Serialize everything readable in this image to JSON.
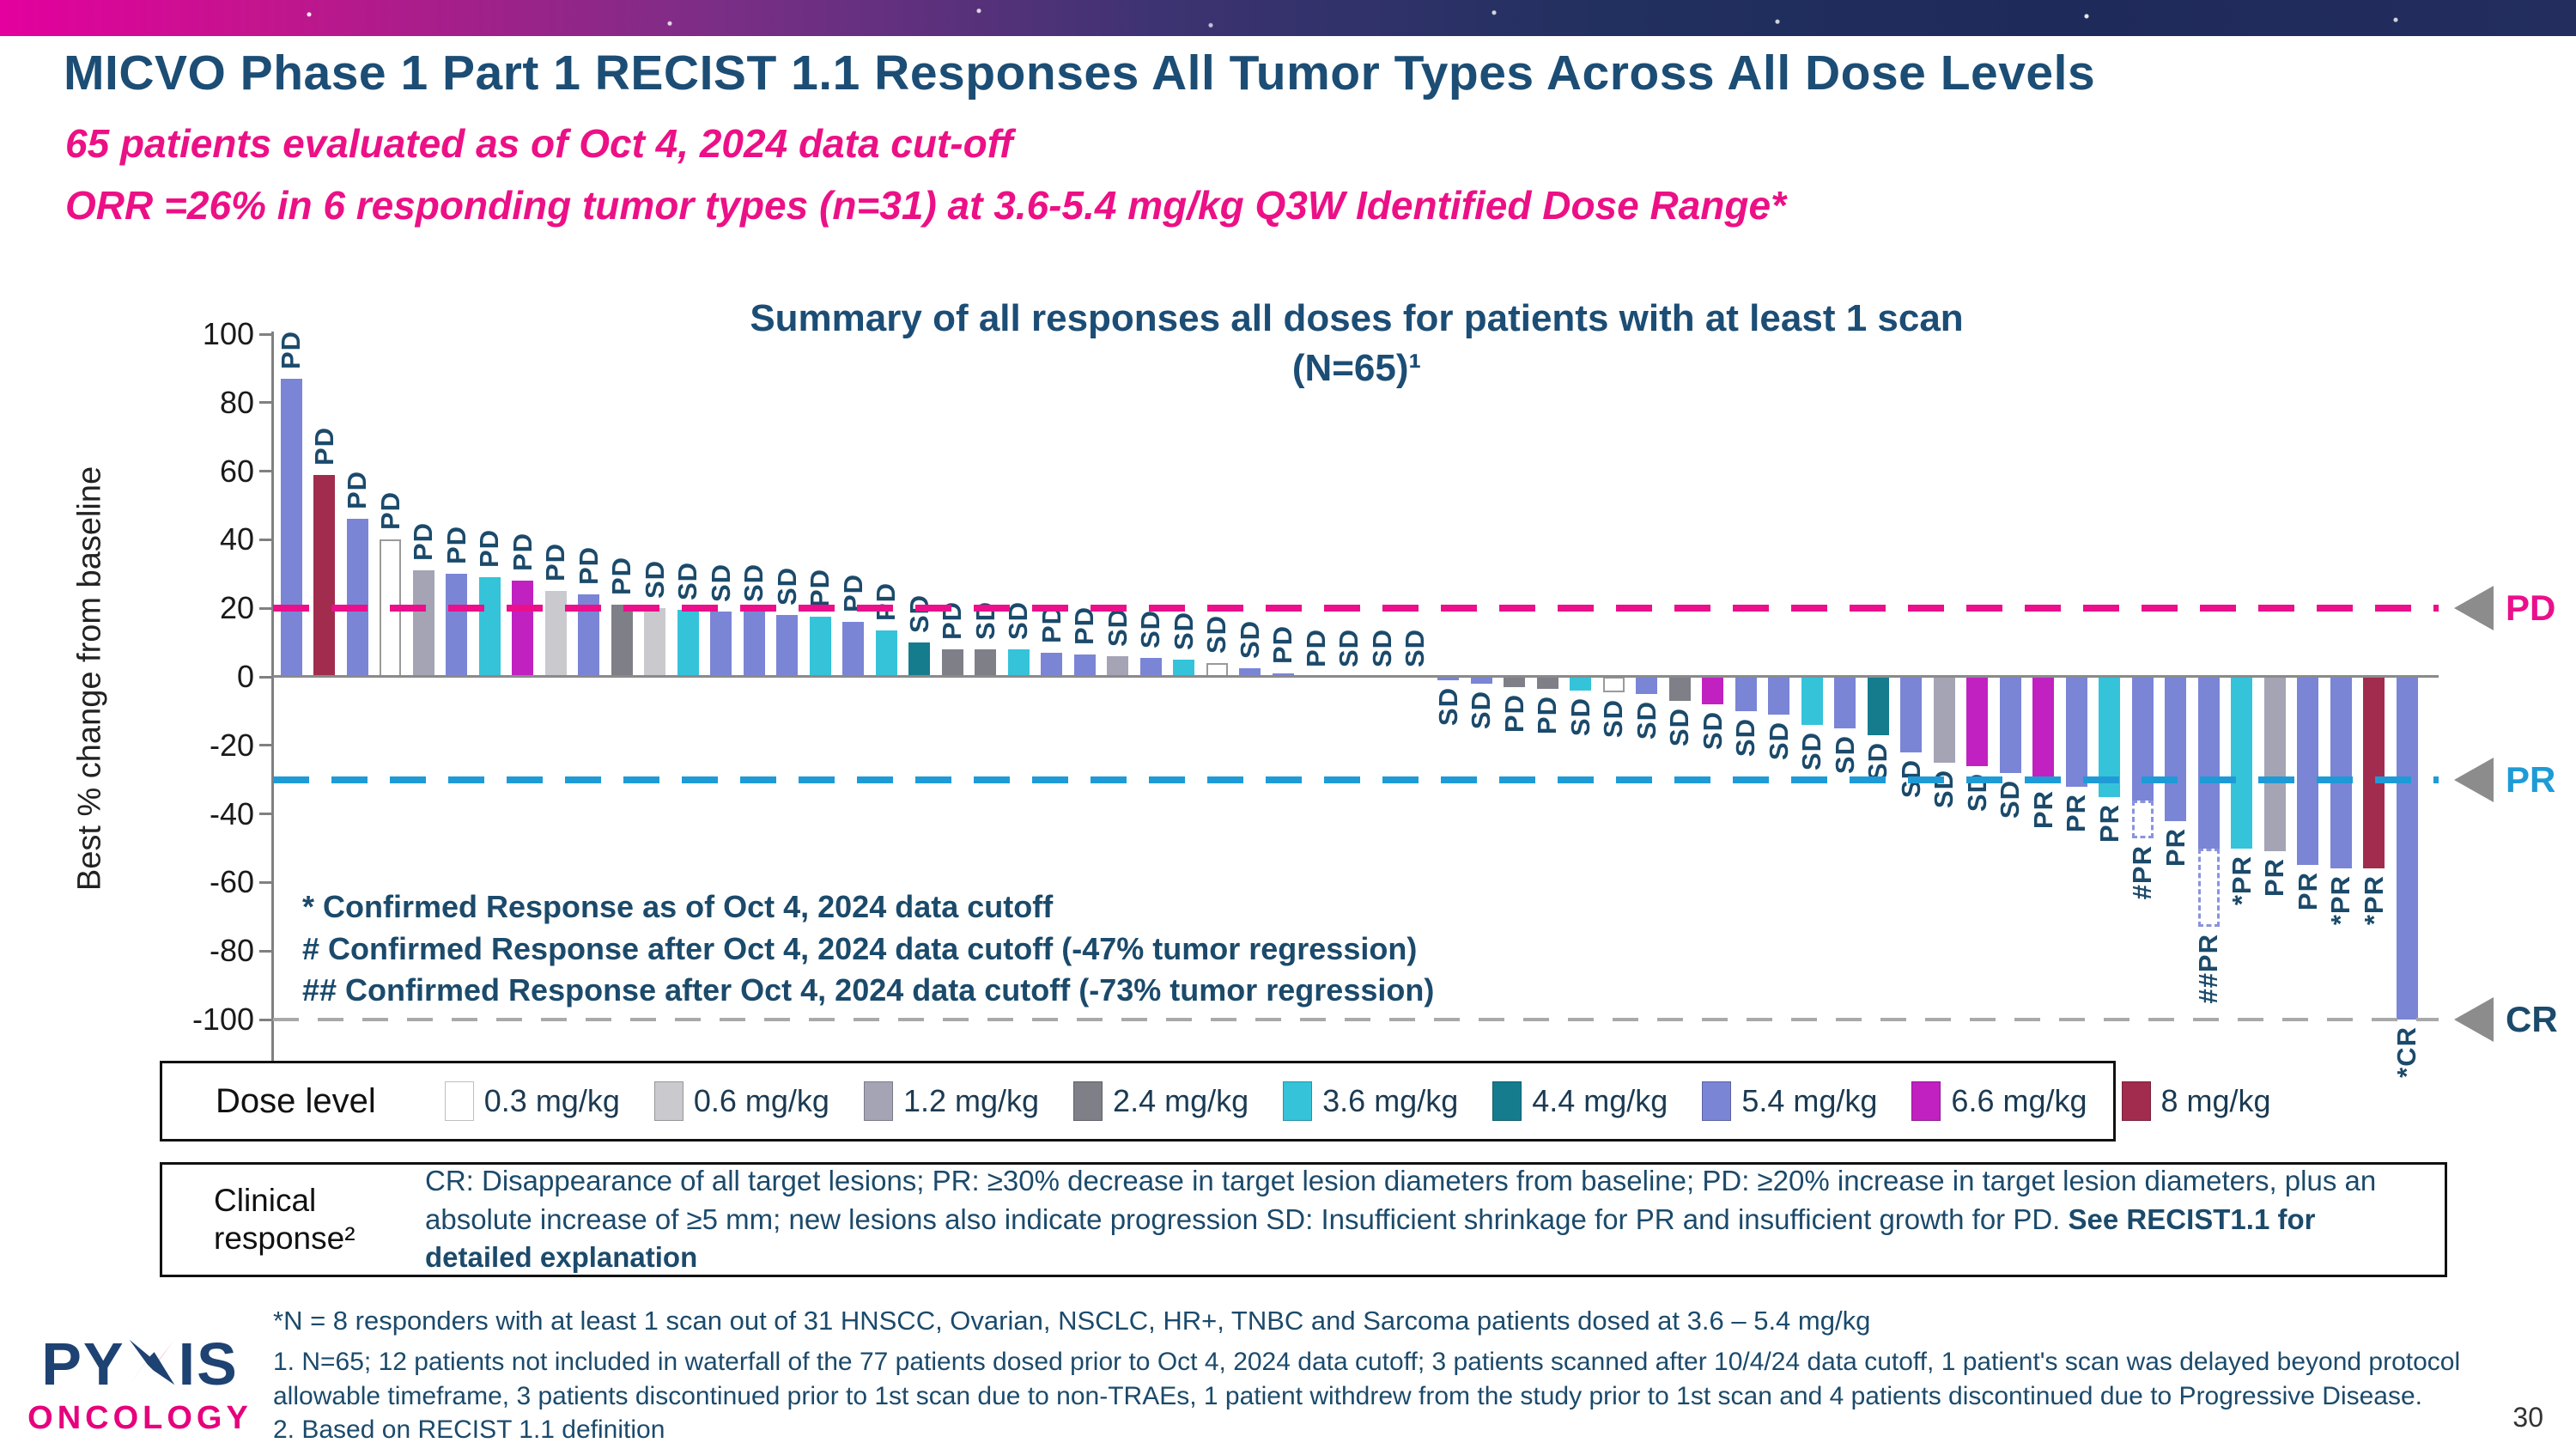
{
  "slide": {
    "title": "MICVO Phase 1 Part 1 RECIST 1.1 Responses All Tumor Types Across All Dose Levels",
    "subtitle1": "65 patients evaluated as of Oct 4, 2024 data cut-off",
    "subtitle2": "ORR =26% in 6 responding tumor types (n=31) at 3.6-5.4 mg/kg Q3W Identified Dose Range*",
    "page_number": "30",
    "logo": {
      "text_before_star": "PY",
      "text_after_star": "IS",
      "full_name": "PYXIS",
      "subtitle": "ONCOLOGY"
    }
  },
  "chart_data": {
    "type": "bar",
    "title_line1": "Summary of all responses all doses for patients with at least 1 scan",
    "title_line2": "(N=65)¹",
    "ylabel": "Best % change from baseline",
    "ylim": [
      -100,
      100
    ],
    "yticks": [
      100,
      80,
      60,
      40,
      20,
      0,
      -20,
      -40,
      -60,
      -80,
      -100
    ],
    "grid": false,
    "reference_lines": [
      {
        "label": "PD",
        "value": 20,
        "color": "#EB0F8C",
        "label_color": "#EB0F8C"
      },
      {
        "label": "PR",
        "value": -30,
        "color": "#1E9BD7",
        "label_color": "#1E9BD7"
      },
      {
        "label": "CR",
        "value": -100,
        "color": "#A9A9A9",
        "label_color": "#1B4A6B"
      }
    ],
    "dose_colors": {
      "0.3": "#FFFFFF",
      "0.6": "#C9C9CE",
      "1.2": "#A4A4B4",
      "2.4": "#7F7F88",
      "3.6": "#35C3DA",
      "4.4": "#157C8E",
      "5.4": "#7A85D6",
      "6.6": "#C121C1",
      "8": "#A12C4E"
    },
    "bars": [
      {
        "value": 87,
        "dose": "5.4",
        "response": "PD"
      },
      {
        "value": 59,
        "dose": "8",
        "response": "PD"
      },
      {
        "value": 46,
        "dose": "5.4",
        "response": "PD"
      },
      {
        "value": 40,
        "dose": "0.3",
        "response": "PD"
      },
      {
        "value": 31,
        "dose": "1.2",
        "response": "PD"
      },
      {
        "value": 30,
        "dose": "5.4",
        "response": "PD"
      },
      {
        "value": 29,
        "dose": "3.6",
        "response": "PD"
      },
      {
        "value": 28,
        "dose": "6.6",
        "response": "PD"
      },
      {
        "value": 25,
        "dose": "0.6",
        "response": "PD"
      },
      {
        "value": 24,
        "dose": "5.4",
        "response": "PD"
      },
      {
        "value": 21,
        "dose": "2.4",
        "response": "PD"
      },
      {
        "value": 20,
        "dose": "0.6",
        "response": "SD"
      },
      {
        "value": 19.5,
        "dose": "3.6",
        "response": "SD"
      },
      {
        "value": 19,
        "dose": "5.4",
        "response": "SD"
      },
      {
        "value": 19,
        "dose": "5.4",
        "response": "SD"
      },
      {
        "value": 18,
        "dose": "5.4",
        "response": "SD"
      },
      {
        "value": 17.5,
        "dose": "3.6",
        "response": "PD"
      },
      {
        "value": 16,
        "dose": "5.4",
        "response": "PD"
      },
      {
        "value": 13.5,
        "dose": "3.6",
        "response": "PD"
      },
      {
        "value": 10,
        "dose": "4.4",
        "response": "SD"
      },
      {
        "value": 8,
        "dose": "2.4",
        "response": "PD"
      },
      {
        "value": 8,
        "dose": "2.4",
        "response": "SD"
      },
      {
        "value": 8,
        "dose": "3.6",
        "response": "SD"
      },
      {
        "value": 7,
        "dose": "5.4",
        "response": "PD"
      },
      {
        "value": 6.5,
        "dose": "5.4",
        "response": "PD"
      },
      {
        "value": 6,
        "dose": "1.2",
        "response": "SD"
      },
      {
        "value": 5.5,
        "dose": "5.4",
        "response": "SD"
      },
      {
        "value": 5,
        "dose": "3.6",
        "response": "SD"
      },
      {
        "value": 4,
        "dose": "0.3",
        "response": "SD"
      },
      {
        "value": 2.5,
        "dose": "5.4",
        "response": "SD"
      },
      {
        "value": 1,
        "dose": "5.4",
        "response": "PD"
      },
      {
        "value": 0,
        "dose": null,
        "response": "PD"
      },
      {
        "value": 0,
        "dose": null,
        "response": "SD"
      },
      {
        "value": 0,
        "dose": null,
        "response": "SD"
      },
      {
        "value": 0,
        "dose": null,
        "response": "SD"
      },
      {
        "value": -1,
        "dose": "5.4",
        "response": "SD"
      },
      {
        "value": -2,
        "dose": "5.4",
        "response": "SD"
      },
      {
        "value": -3,
        "dose": "2.4",
        "response": "PD"
      },
      {
        "value": -3.5,
        "dose": "2.4",
        "response": "PD"
      },
      {
        "value": -4,
        "dose": "3.6",
        "response": "SD"
      },
      {
        "value": -4.5,
        "dose": "0.3",
        "response": "SD"
      },
      {
        "value": -5,
        "dose": "5.4",
        "response": "SD"
      },
      {
        "value": -7,
        "dose": "2.4",
        "response": "SD"
      },
      {
        "value": -8,
        "dose": "6.6",
        "response": "SD"
      },
      {
        "value": -10,
        "dose": "5.4",
        "response": "SD"
      },
      {
        "value": -11,
        "dose": "5.4",
        "response": "SD"
      },
      {
        "value": -14,
        "dose": "3.6",
        "response": "SD"
      },
      {
        "value": -15,
        "dose": "5.4",
        "response": "SD"
      },
      {
        "value": -17,
        "dose": "4.4",
        "response": "SD"
      },
      {
        "value": -22,
        "dose": "5.4",
        "response": "SD"
      },
      {
        "value": -25,
        "dose": "1.2",
        "response": "SD"
      },
      {
        "value": -26,
        "dose": "6.6",
        "response": "SD"
      },
      {
        "value": -28,
        "dose": "5.4",
        "response": "SD"
      },
      {
        "value": -31,
        "dose": "6.6",
        "response": "PR"
      },
      {
        "value": -32,
        "dose": "5.4",
        "response": "PR"
      },
      {
        "value": -35,
        "dose": "3.6",
        "response": "PR"
      },
      {
        "value": -36,
        "dose": "5.4",
        "response": "#PR",
        "dashed_to": -47
      },
      {
        "value": -42,
        "dose": "5.4",
        "response": "PR"
      },
      {
        "value": -50,
        "dose": "5.4",
        "response": "##PR",
        "dashed_to": -73
      },
      {
        "value": -50,
        "dose": "3.6",
        "response": "*PR"
      },
      {
        "value": -51,
        "dose": "1.2",
        "response": "PR"
      },
      {
        "value": -55,
        "dose": "5.4",
        "response": "PR"
      },
      {
        "value": -56,
        "dose": "5.4",
        "response": "*PR"
      },
      {
        "value": -56,
        "dose": "8",
        "response": "*PR"
      },
      {
        "value": -100,
        "dose": "5.4",
        "response": "*CR"
      }
    ],
    "annotations": [
      "* Confirmed Response as of Oct 4, 2024 data cutoff",
      "# Confirmed Response after Oct 4, 2024 data cutoff (-47% tumor regression)",
      "## Confirmed Response after Oct 4, 2024 data cutoff (-73% tumor regression)"
    ]
  },
  "legend": {
    "label": "Dose level",
    "items": [
      {
        "label": "0.3 mg/kg",
        "color": "#FFFFFF"
      },
      {
        "label": "0.6 mg/kg",
        "color": "#C9C9CE"
      },
      {
        "label": "1.2 mg/kg",
        "color": "#A4A4B4"
      },
      {
        "label": "2.4 mg/kg",
        "color": "#7F7F88"
      },
      {
        "label": "3.6 mg/kg",
        "color": "#35C3DA"
      },
      {
        "label": "4.4 mg/kg",
        "color": "#157C8E"
      },
      {
        "label": "5.4 mg/kg",
        "color": "#7A85D6"
      },
      {
        "label": "6.6 mg/kg",
        "color": "#C121C1"
      },
      {
        "label": "8 mg/kg",
        "color": "#A12C4E"
      }
    ]
  },
  "clinical_box": {
    "label": "Clinical response²",
    "text": "CR: Disappearance of all target lesions; PR: ≥30% decrease in target lesion diameters from baseline; PD: ≥20% increase in target lesion diameters, plus an absolute increase of ≥5 mm; new lesions also indicate progression SD: Insufficient shrinkage for PR and insufficient growth for PD. ",
    "bold_text": "See RECIST1.1 for detailed explanation"
  },
  "footnotes": {
    "star": "*N = 8 responders with at least 1 scan out of 31 HNSCC, Ovarian, NSCLC, HR+, TNBC and Sarcoma patients dosed at 3.6 – 5.4 mg/kg",
    "n1": "1.  N=65; 12 patients not included in waterfall of the 77 patients dosed prior to Oct 4, 2024 data cutoff; 3 patients scanned after 10/4/24 data cutoff, 1 patient's scan was delayed beyond protocol allowable timeframe, 3 patients discontinued prior to 1st scan due to non-TRAEs, 1 patient withdrew from the study prior to 1st scan and 4 patients discontinued due to Progressive Disease.",
    "n2": "2. Based on RECIST 1.1 definition"
  }
}
